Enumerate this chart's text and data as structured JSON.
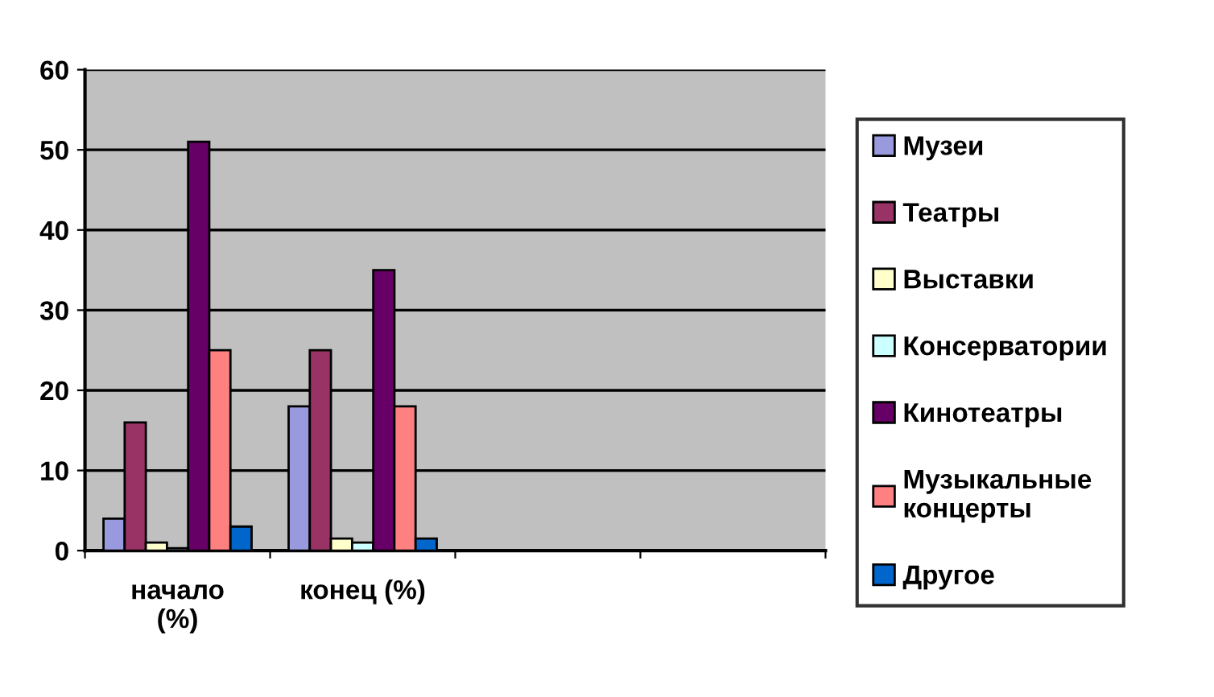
{
  "chart_data": {
    "type": "bar",
    "categories": [
      "начало\n(%)",
      "конец (%)",
      null,
      null
    ],
    "series": [
      {
        "name": "Музеи",
        "color": "#9999dd",
        "values": [
          4,
          18,
          null,
          null
        ]
      },
      {
        "name": "Театры",
        "color": "#993366",
        "values": [
          16,
          25,
          null,
          null
        ]
      },
      {
        "name": "Выставки",
        "color": "#ffffcc",
        "values": [
          1,
          1.5,
          null,
          null
        ]
      },
      {
        "name": "Консерватории",
        "color": "#ccffff",
        "values": [
          0.3,
          1,
          null,
          null
        ]
      },
      {
        "name": "Кинотеатры",
        "color": "#660066",
        "values": [
          51,
          35,
          null,
          null
        ]
      },
      {
        "name": "Музыкальные\nконцерты",
        "color": "#ff8080",
        "values": [
          25,
          18,
          null,
          null
        ]
      },
      {
        "name": "Другое",
        "color": "#0066cc",
        "values": [
          3,
          1.5,
          null,
          null
        ]
      }
    ],
    "ylim": [
      0,
      60
    ],
    "yticks": [
      0,
      10,
      20,
      30,
      40,
      50,
      60
    ],
    "grid": "y",
    "legend": "right"
  }
}
